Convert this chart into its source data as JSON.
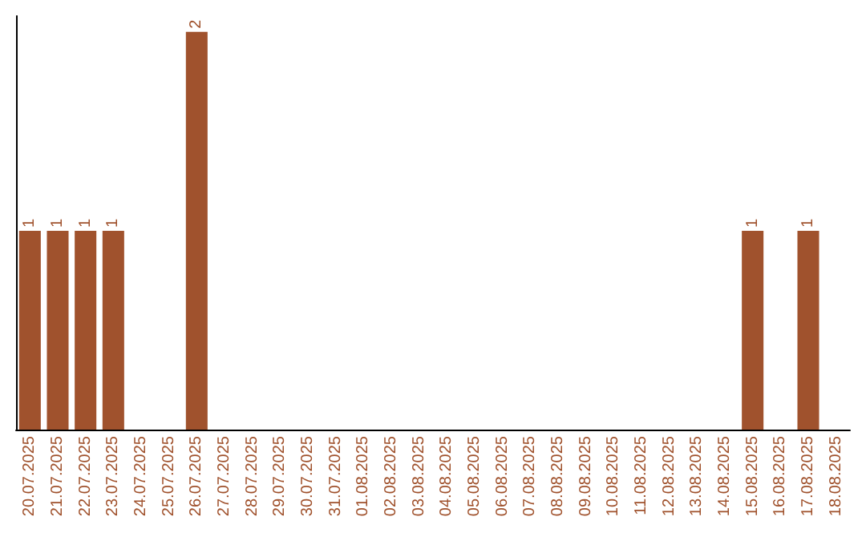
{
  "chart_data": {
    "type": "bar",
    "categories": [
      "20.07.2025",
      "21.07.2025",
      "22.07.2025",
      "23.07.2025",
      "24.07.2025",
      "25.07.2025",
      "26.07.2025",
      "27.07.2025",
      "28.07.2025",
      "29.07.2025",
      "30.07.2025",
      "31.07.2025",
      "01.08.2025",
      "02.08.2025",
      "03.08.2025",
      "04.08.2025",
      "05.08.2025",
      "06.08.2025",
      "07.08.2025",
      "08.08.2025",
      "09.08.2025",
      "10.08.2025",
      "11.08.2025",
      "12.08.2025",
      "13.08.2025",
      "14.08.2025",
      "15.08.2025",
      "16.08.2025",
      "17.08.2025",
      "18.08.2025"
    ],
    "values": [
      1,
      1,
      1,
      1,
      0,
      0,
      2,
      0,
      0,
      0,
      0,
      0,
      0,
      0,
      0,
      0,
      0,
      0,
      0,
      0,
      0,
      0,
      0,
      0,
      0,
      0,
      1,
      0,
      1,
      0
    ],
    "value_labels": [
      "1",
      "1",
      "1",
      "1",
      null,
      null,
      "2",
      null,
      null,
      null,
      null,
      null,
      null,
      null,
      null,
      null,
      null,
      null,
      null,
      null,
      null,
      null,
      null,
      null,
      null,
      null,
      "1",
      null,
      "1",
      null
    ],
    "color": "#a0522d",
    "ylim": [
      0,
      2.08
    ],
    "tick_labels": "x",
    "grid": false
  }
}
